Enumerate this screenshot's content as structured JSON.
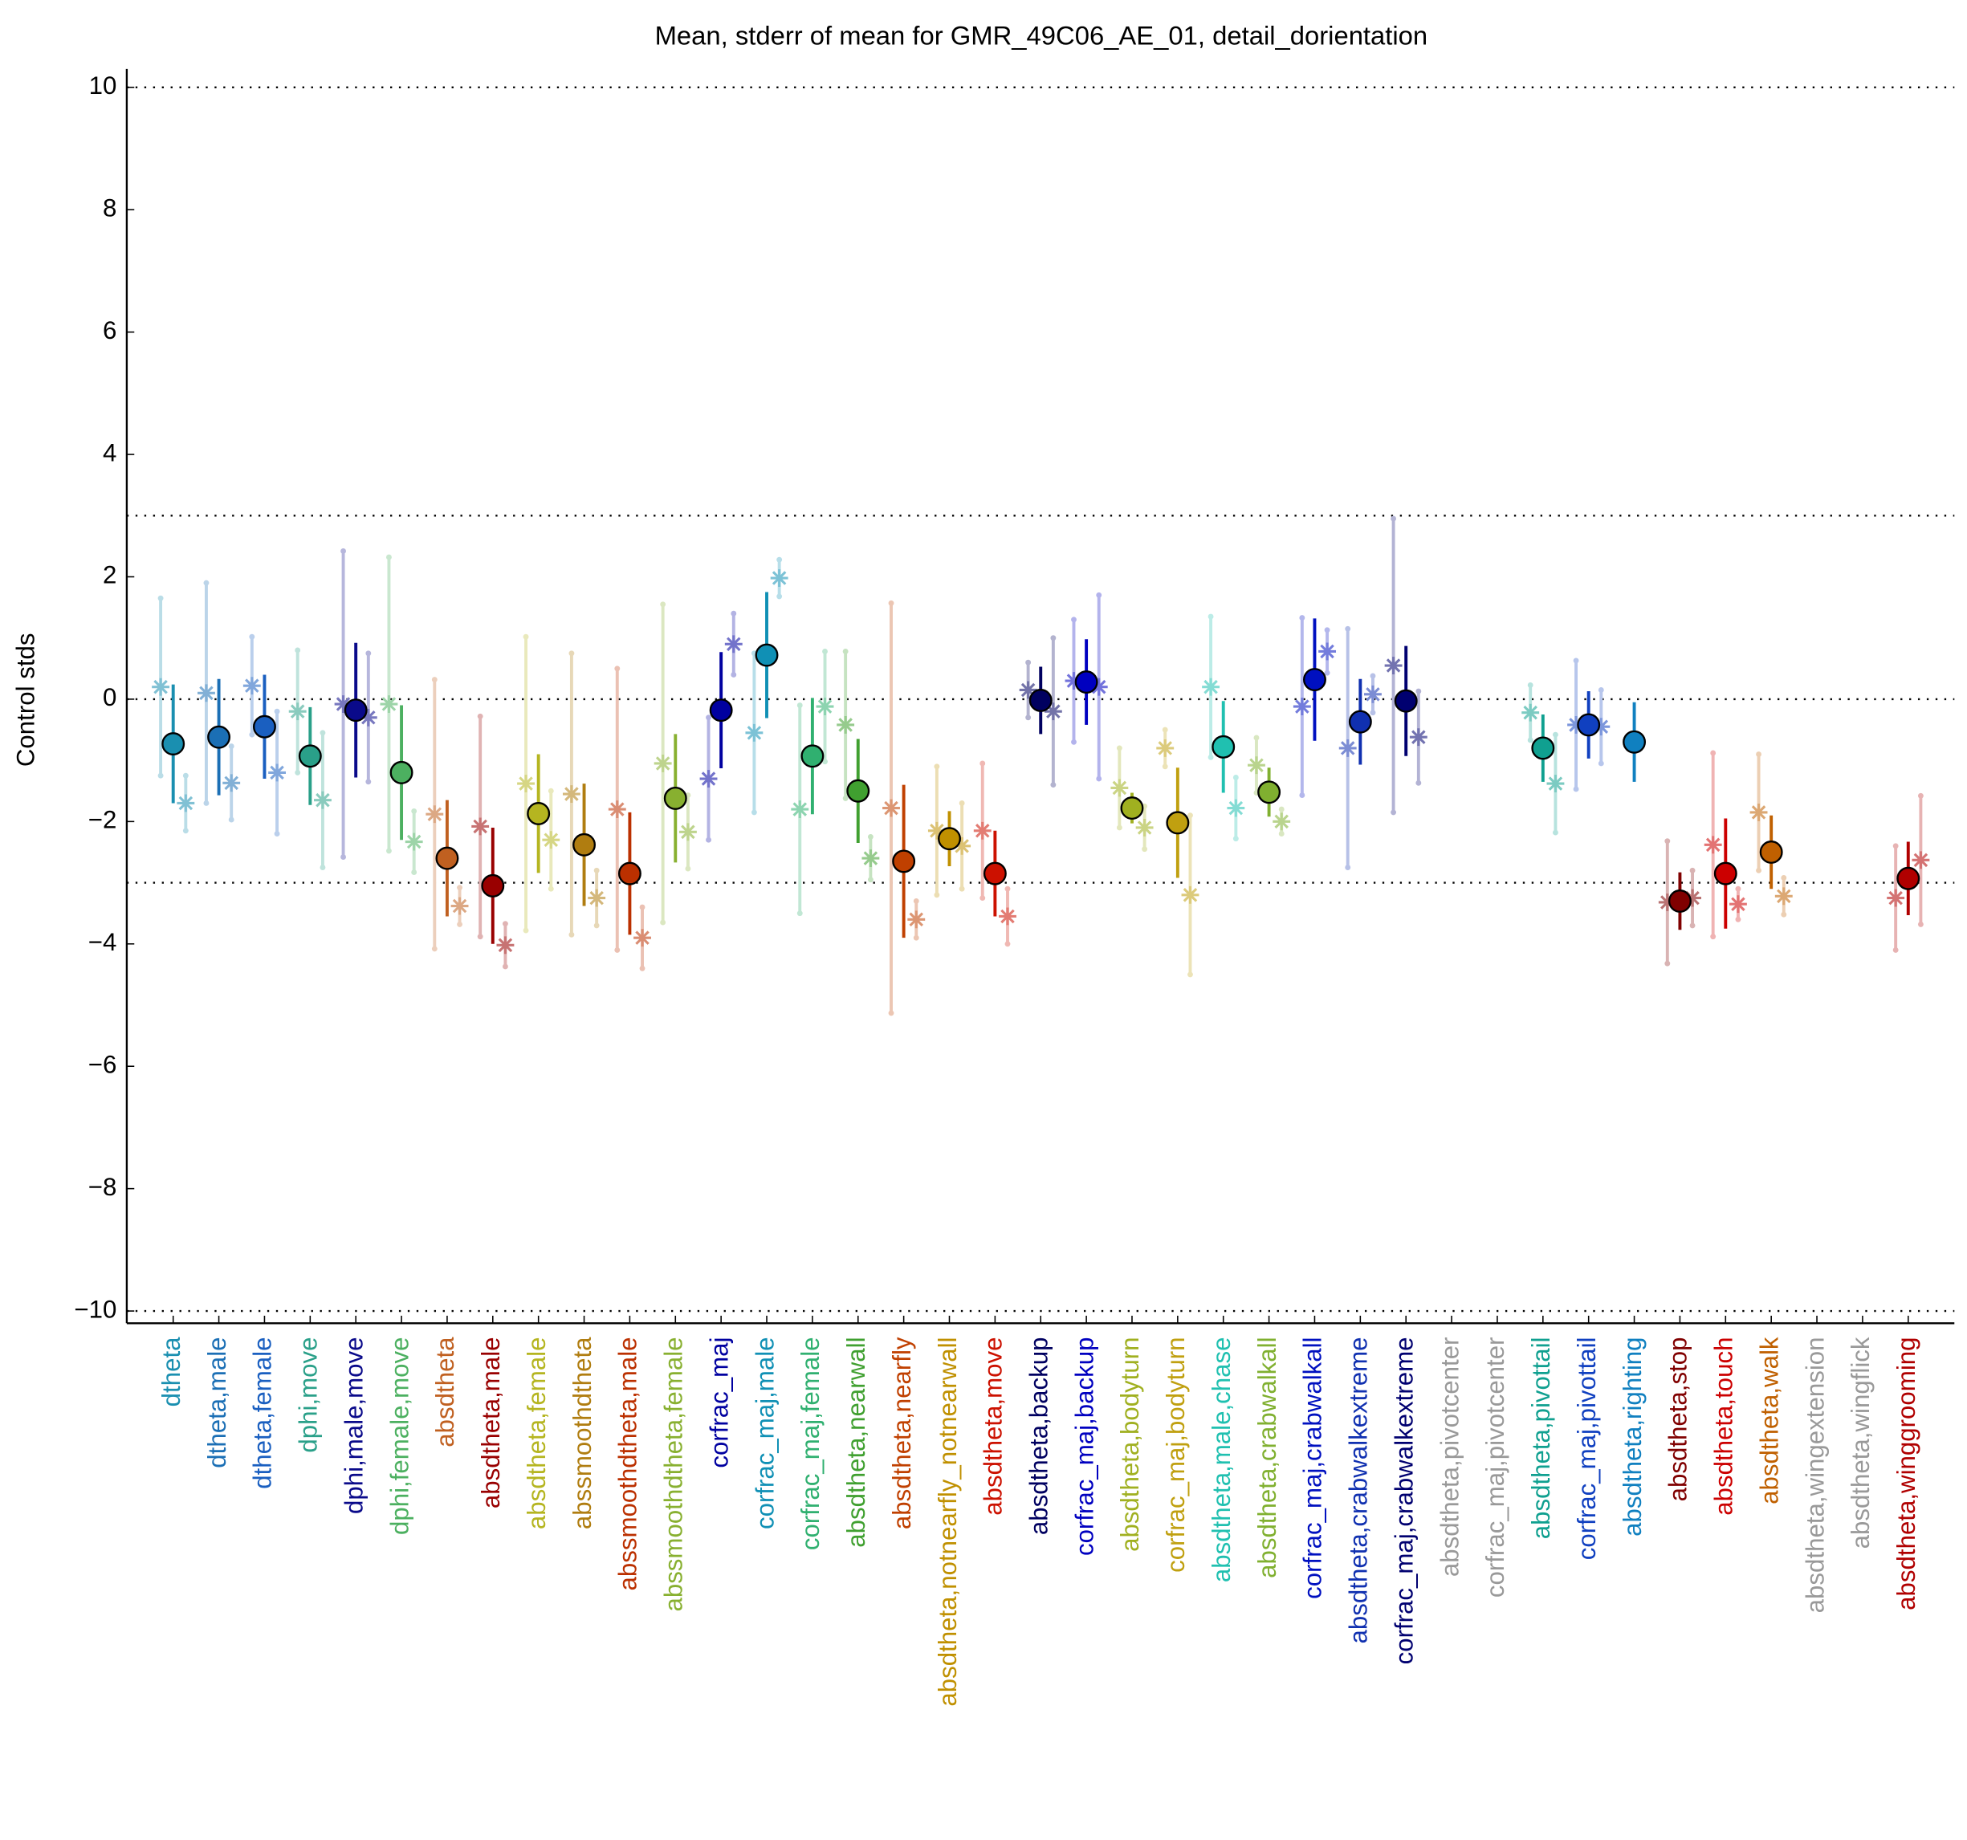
{
  "chart_data": {
    "type": "errorbar",
    "title": "Mean, stderr of mean for GMR_49C06_AE_01, detail_dorientation",
    "y_label": "Control stds",
    "categories": [
      "dtheta",
      "dtheta,male",
      "dtheta,female",
      "dphi,move",
      "dphi,male,move",
      "dphi,female,move",
      "absdtheta",
      "absdtheta,male",
      "absdtheta,female",
      "abssmoothdtheta",
      "abssmoothdtheta,male",
      "abssmoothdtheta,female",
      "corfrac_maj",
      "corfrac_maj,male",
      "corfrac_maj,female",
      "absdtheta,nearwall",
      "absdtheta,nearfly",
      "absdtheta,notnearfly_notnearwall",
      "absdtheta,move",
      "absdtheta,backup",
      "corfrac_maj,backup",
      "absdtheta,bodyturn",
      "corfrac_maj,bodyturn",
      "absdtheta,male,chase",
      "absdtheta,crabwalkall",
      "corfrac_maj,crabwalkall",
      "absdtheta,crabwalkextreme",
      "corfrac_maj,crabwalkextreme",
      "absdtheta,pivotcenter",
      "corfrac_maj,pivotcenter",
      "absdtheta,pivottail",
      "corfrac_maj,pivottail",
      "absdtheta,righting",
      "absdtheta,stop",
      "absdtheta,touch",
      "absdtheta,walk",
      "absdtheta,wingextension",
      "absdtheta,wingflick",
      "absdtheta,winggrooming"
    ],
    "colors": [
      "#1a8fb0",
      "#1b6fb5",
      "#1a5fc0",
      "#2aa089",
      "#0a0a8a",
      "#4cb060",
      "#c06020",
      "#990000",
      "#b5b520",
      "#b07d10",
      "#bb3000",
      "#88b030",
      "#0000a0",
      "#1090b5",
      "#30b070",
      "#40a030",
      "#c04000",
      "#c09000",
      "#cc1100",
      "#000060",
      "#0000c0",
      "#a0b020",
      "#c0a010",
      "#20c0b0",
      "#80b030",
      "#0010c0",
      "#1030b0",
      "#000070",
      "#999999",
      "#999999",
      "#10a090",
      "#1040c0",
      "#1080c0",
      "#800000",
      "#cc0000",
      "#c06000",
      "#999999",
      "#999999",
      "#b00000"
    ],
    "values": [
      -0.73,
      -0.62,
      -0.45,
      -0.93,
      -0.18,
      -1.2,
      -2.6,
      -3.05,
      -1.87,
      -2.38,
      -2.85,
      -1.62,
      -0.18,
      0.72,
      -0.93,
      -1.5,
      -2.65,
      -2.28,
      -2.85,
      -0.02,
      0.28,
      -1.78,
      -2.02,
      -0.78,
      -1.52,
      0.32,
      -0.37,
      -0.03,
      null,
      null,
      -0.8,
      -0.42,
      -0.7,
      -3.3,
      -2.85,
      -2.5,
      null,
      null,
      -2.93
    ],
    "errors": [
      0.97,
      0.95,
      0.85,
      0.8,
      1.1,
      1.1,
      0.95,
      0.95,
      0.97,
      1.0,
      1.0,
      1.05,
      0.95,
      1.03,
      0.95,
      0.85,
      1.25,
      0.45,
      0.7,
      0.55,
      0.7,
      0.25,
      0.9,
      0.75,
      0.4,
      1.0,
      0.7,
      0.9,
      null,
      null,
      0.55,
      0.55,
      0.65,
      0.47,
      0.9,
      0.6,
      null,
      null,
      0.6
    ],
    "left_values": [
      0.2,
      0.1,
      0.22,
      -0.2,
      -0.08,
      -0.08,
      -1.88,
      -2.08,
      -1.38,
      -1.55,
      -1.8,
      -1.05,
      -1.3,
      -0.55,
      -1.8,
      -0.42,
      -1.78,
      -2.15,
      -2.15,
      0.15,
      0.3,
      -1.45,
      -0.8,
      0.2,
      -1.08,
      -0.12,
      -0.8,
      0.55,
      null,
      null,
      -0.22,
      -0.42,
      null,
      -3.32,
      -2.38,
      -1.85,
      null,
      null,
      -3.25
    ],
    "left_errors": [
      1.45,
      1.8,
      0.8,
      1.0,
      2.5,
      2.4,
      2.2,
      1.8,
      2.4,
      2.3,
      2.3,
      2.6,
      1.0,
      1.3,
      1.7,
      1.2,
      3.35,
      1.05,
      1.1,
      0.45,
      1.0,
      0.65,
      0.3,
      1.15,
      0.45,
      1.45,
      1.95,
      2.4,
      null,
      null,
      0.45,
      1.05,
      null,
      1.0,
      1.5,
      0.95,
      null,
      null,
      0.85
    ],
    "right_values": [
      -1.7,
      -1.37,
      -1.2,
      -1.65,
      -0.3,
      -2.33,
      -3.38,
      -4.02,
      -2.3,
      -3.25,
      -3.9,
      -2.17,
      0.9,
      1.98,
      -0.12,
      -2.6,
      -3.6,
      -2.4,
      -3.55,
      -0.2,
      0.2,
      -2.1,
      -3.2,
      -1.78,
      -2.0,
      0.78,
      0.08,
      -0.62,
      null,
      null,
      -1.38,
      -0.45,
      null,
      -3.25,
      -3.35,
      -3.22,
      null,
      null,
      -2.63
    ],
    "right_errors": [
      0.45,
      0.6,
      1.0,
      1.1,
      1.05,
      0.5,
      0.3,
      0.35,
      0.8,
      0.45,
      0.5,
      0.6,
      0.5,
      0.3,
      0.9,
      0.35,
      0.3,
      0.7,
      0.45,
      1.2,
      1.5,
      0.35,
      1.3,
      0.5,
      0.2,
      0.35,
      0.3,
      0.75,
      null,
      null,
      0.8,
      0.6,
      null,
      0.45,
      0.25,
      0.3,
      null,
      null,
      1.05
    ],
    "ylim": [
      -10.2,
      10.3
    ],
    "yticks": [
      {
        "value": -10,
        "label": "−10"
      },
      {
        "value": -8,
        "label": "−8"
      },
      {
        "value": -6,
        "label": "−6"
      },
      {
        "value": -4,
        "label": "−4"
      },
      {
        "value": -2,
        "label": "−2"
      },
      0,
      2,
      4,
      6,
      8,
      10
    ],
    "reference_lines": [
      10,
      3,
      0,
      -3,
      -10
    ]
  }
}
